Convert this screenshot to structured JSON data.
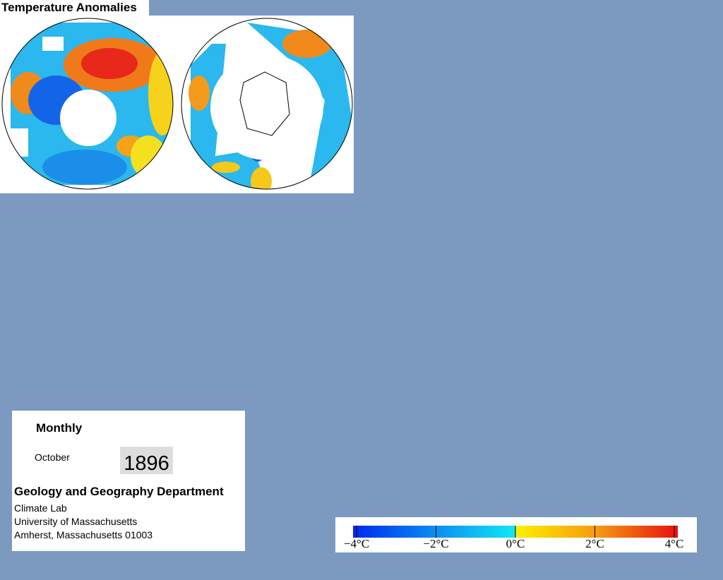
{
  "title": "Temperature Anomalies",
  "panel": {
    "period": "Monthly",
    "month": "October",
    "year": "1896",
    "department": "Geology and Geography Department",
    "lines": [
      "Climate Lab",
      "University of Massachusetts",
      "Amherst, Massachusetts 01003"
    ]
  },
  "colorbar": {
    "ticks": [
      {
        "value": -4,
        "label": "−4°C"
      },
      {
        "value": -2,
        "label": "−2°C"
      },
      {
        "value": 0,
        "label": "0°C"
      },
      {
        "value": 2,
        "label": "2°C"
      },
      {
        "value": 4,
        "label": "4°C"
      }
    ]
  }
}
